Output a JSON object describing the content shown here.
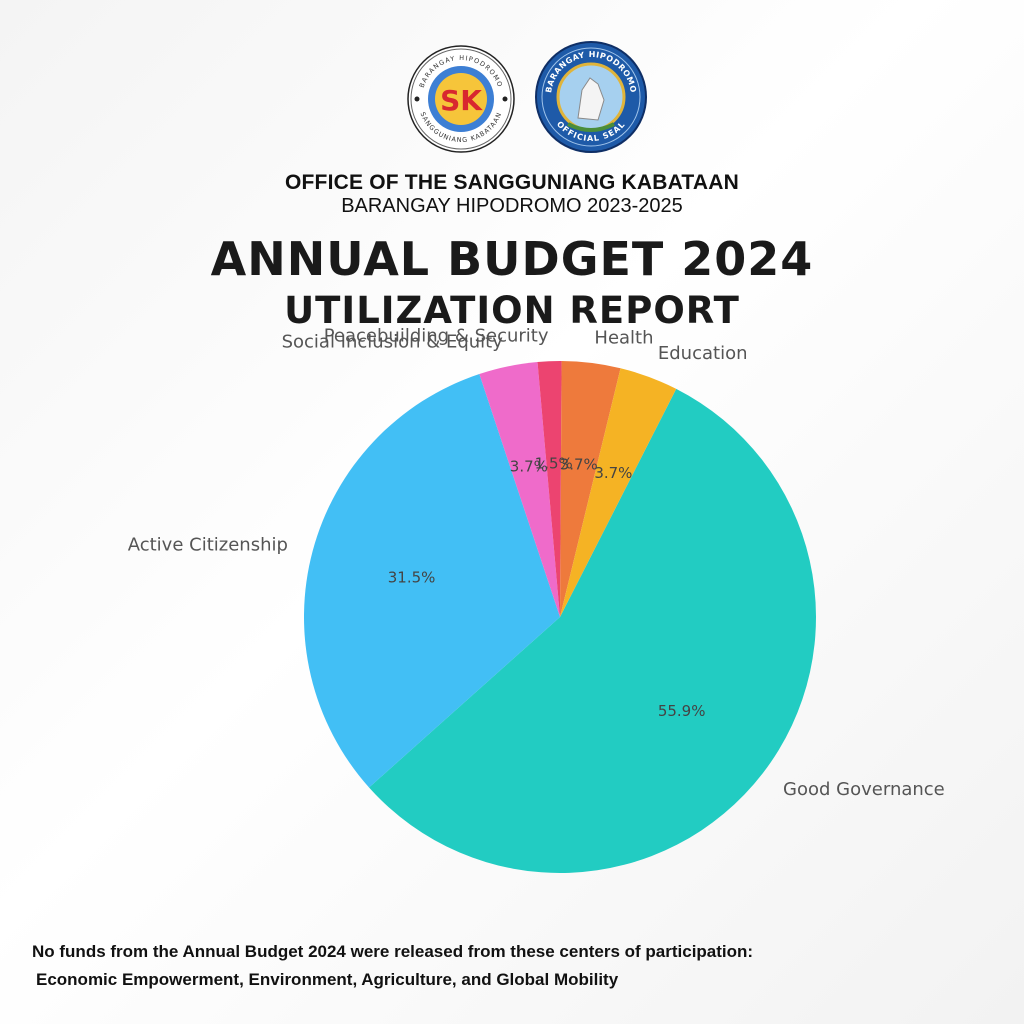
{
  "header": {
    "logo_left_text": "BARANGAY HIPODROMO",
    "logo_left_bottom_text": "SANGGUNIANG KABATAAN",
    "logo_left_mark": "SK",
    "logo_right_text": "BARANGAY HIPODROMO",
    "logo_right_bottom_text": "OFFICIAL SEAL",
    "org_title": "OFFICE OF THE SANGGUNIANG KABATAAN",
    "org_subtitle": "BARANGAY HIPODROMO 2023-2025",
    "report_title": "ANNUAL BUDGET 2024",
    "report_subtitle": "UTILIZATION REPORT"
  },
  "chart_data": {
    "type": "pie",
    "categories": [
      "Good Governance",
      "Active Citizenship",
      "Social Inclusion & Equity",
      "Peacebuilding & Security",
      "Health",
      "Education"
    ],
    "values": [
      55.9,
      31.5,
      3.7,
      1.5,
      3.7,
      3.7
    ],
    "value_labels": [
      "55.9%",
      "31.5%",
      "3.7%",
      "1.5%",
      "3.7%",
      "3.7%"
    ],
    "colors": [
      "#22ccc2",
      "#42bff5",
      "#ef6bca",
      "#ec4470",
      "#ee7a3c",
      "#f5b324"
    ],
    "start_angle_deg": 63,
    "direction": "clockwise",
    "legend": "none"
  },
  "footnote": {
    "line1": "No funds from the Annual Budget 2024 were released from these centers of participation:",
    "line2": "Economic Empowerment, Environment, Agriculture, and Global Mobility"
  }
}
